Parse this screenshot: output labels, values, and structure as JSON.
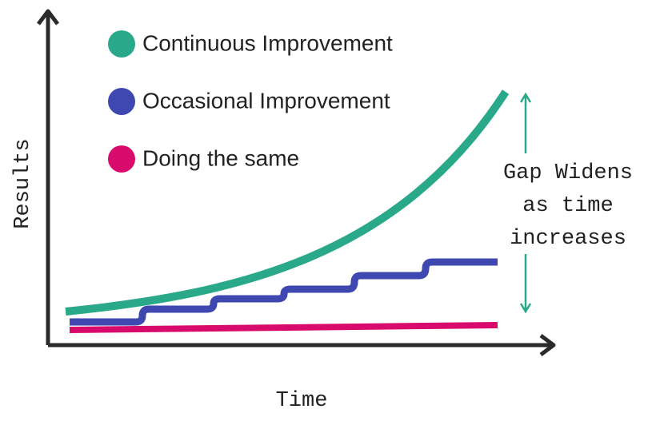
{
  "axes": {
    "x_label": "Time",
    "y_label": "Results"
  },
  "legend": [
    {
      "name": "Continuous Improvement",
      "color": "#2aa88a"
    },
    {
      "name": "Occasional Improvement",
      "color": "#3f48b0"
    },
    {
      "name": "Doing the same",
      "color": "#d80b6c"
    }
  ],
  "annotation": {
    "lines": [
      "Gap Widens",
      "as time",
      "increases"
    ],
    "color": "#2aa88a"
  }
}
